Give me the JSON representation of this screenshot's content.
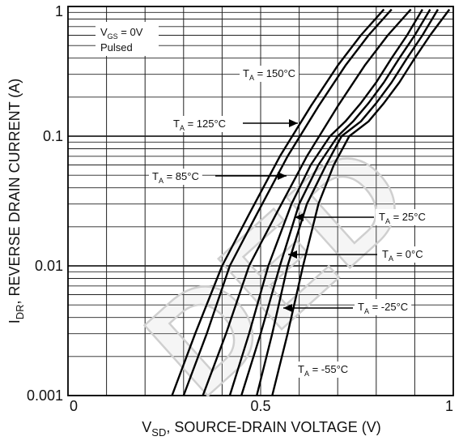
{
  "chart_data": {
    "type": "line",
    "title": "",
    "xlabel": {
      "base": "V",
      "sub": "SD",
      "rest": ", SOURCE-DRAIN VOLTAGE (V)"
    },
    "ylabel": {
      "base": "I",
      "sub": "DR",
      "rest": ", REVERSE DRAIN CURRENT (A)"
    },
    "xlim": [
      0,
      1
    ],
    "ylim": [
      0.001,
      1
    ],
    "yscale": "log",
    "grid": true,
    "x_ticks": [
      {
        "value": 0,
        "label": "0"
      },
      {
        "value": 0.5,
        "label": "0.5"
      },
      {
        "value": 1,
        "label": "1"
      }
    ],
    "y_ticks": [
      {
        "value": 1,
        "label": "1"
      },
      {
        "value": 0.1,
        "label": "0.1"
      },
      {
        "value": 0.01,
        "label": "0.01"
      },
      {
        "value": 0.001,
        "label": "0.001"
      }
    ],
    "conditions": {
      "vgs": {
        "base": "V",
        "sub": "GS",
        "rest": " = 0V"
      },
      "pulsed": "Pulsed"
    },
    "series": [
      {
        "name": {
          "base": "T",
          "sub": "A",
          "rest": " = 150°C"
        },
        "x": [
          0.27,
          0.33,
          0.4,
          0.47,
          0.55,
          0.63,
          0.7,
          0.76,
          0.82
        ],
        "y": [
          0.001,
          0.003,
          0.01,
          0.025,
          0.07,
          0.17,
          0.35,
          0.6,
          0.95
        ]
      },
      {
        "name": {
          "base": "T",
          "sub": "A",
          "rest": " = 125°C"
        },
        "x": [
          0.3,
          0.36,
          0.42,
          0.49,
          0.57,
          0.65,
          0.72,
          0.78,
          0.84
        ],
        "y": [
          0.001,
          0.003,
          0.01,
          0.025,
          0.07,
          0.17,
          0.35,
          0.6,
          0.95
        ]
      },
      {
        "name": {
          "base": "T",
          "sub": "A",
          "rest": " = 85°C"
        },
        "x": [
          0.35,
          0.41,
          0.47,
          0.54,
          0.62,
          0.7,
          0.77,
          0.83,
          0.89
        ],
        "y": [
          0.001,
          0.003,
          0.01,
          0.025,
          0.07,
          0.17,
          0.35,
          0.6,
          0.95
        ]
      },
      {
        "name": {
          "base": "T",
          "sub": "A",
          "rest": " = 25°C"
        },
        "x": [
          0.42,
          0.47,
          0.52,
          0.58,
          0.63,
          0.68,
          0.72,
          0.76,
          0.8,
          0.84,
          0.88,
          0.92
        ],
        "y": [
          0.001,
          0.003,
          0.01,
          0.03,
          0.06,
          0.1,
          0.13,
          0.18,
          0.26,
          0.4,
          0.6,
          0.95
        ]
      },
      {
        "name": {
          "base": "T",
          "sub": "A",
          "rest": " = 0°C"
        },
        "x": [
          0.45,
          0.5,
          0.55,
          0.6,
          0.65,
          0.7,
          0.74,
          0.78,
          0.82,
          0.86,
          0.9,
          0.94
        ],
        "y": [
          0.001,
          0.003,
          0.01,
          0.03,
          0.06,
          0.1,
          0.13,
          0.18,
          0.26,
          0.4,
          0.6,
          0.95
        ]
      },
      {
        "name": {
          "base": "T",
          "sub": "A",
          "rest": " = -25°C"
        },
        "x": [
          0.49,
          0.53,
          0.57,
          0.62,
          0.67,
          0.71,
          0.76,
          0.8,
          0.84,
          0.88,
          0.92,
          0.96
        ],
        "y": [
          0.001,
          0.003,
          0.01,
          0.03,
          0.06,
          0.1,
          0.13,
          0.18,
          0.26,
          0.4,
          0.6,
          0.95
        ]
      },
      {
        "name": {
          "base": "T",
          "sub": "A",
          "rest": " = -55°C"
        },
        "x": [
          0.53,
          0.57,
          0.61,
          0.65,
          0.69,
          0.73,
          0.78,
          0.82,
          0.86,
          0.9,
          0.94,
          0.99
        ],
        "y": [
          0.001,
          0.003,
          0.01,
          0.03,
          0.06,
          0.1,
          0.13,
          0.18,
          0.26,
          0.4,
          0.6,
          0.95
        ]
      }
    ]
  },
  "watermark": "DED"
}
